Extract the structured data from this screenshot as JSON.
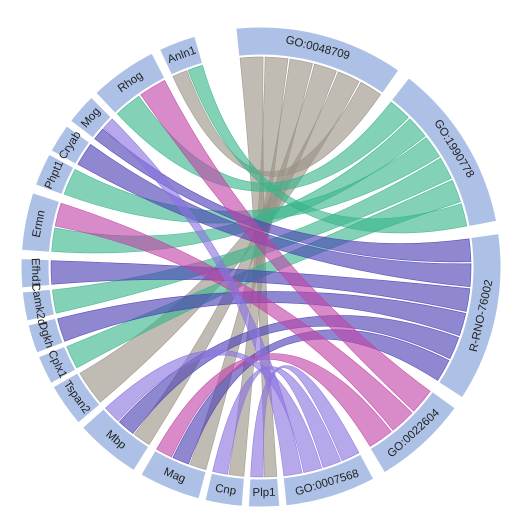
{
  "chart_data": {
    "type": "chord",
    "segment_color": "#adc1e6",
    "segments": [
      {
        "id": "go48709",
        "label": "GO:0048709",
        "a0": -6,
        "a1": 35
      },
      {
        "id": "go1990778",
        "label": "GO:1990778",
        "a0": 38,
        "a1": 79
      },
      {
        "id": "rrno",
        "label": "R-RNO-76002",
        "a0": 82,
        "a1": 123
      },
      {
        "id": "go22604",
        "label": "GO:0022604",
        "a0": 126,
        "a1": 149
      },
      {
        "id": "go7568",
        "label": "GO:0007568",
        "a0": 152,
        "a1": 174
      },
      {
        "id": "plp1",
        "label": "Plp1",
        "a0": 175.5,
        "a1": 183
      },
      {
        "id": "cnp",
        "label": "Cnp",
        "a0": 184.5,
        "a1": 193.5
      },
      {
        "id": "mag",
        "label": "Mag",
        "a0": 195,
        "a1": 210
      },
      {
        "id": "mbp",
        "label": "Mbp",
        "a0": 212,
        "a1": 228
      },
      {
        "id": "tspan2",
        "label": "Tspan2",
        "a0": 229.5,
        "a1": 240
      },
      {
        "id": "cplx1",
        "label": "Cplx1",
        "a0": 241,
        "a1": 248
      },
      {
        "id": "dgkh",
        "label": "Dgkh",
        "a0": 249,
        "a1": 256
      },
      {
        "id": "camk2d",
        "label": "Camk2d",
        "a0": 257,
        "a1": 264
      },
      {
        "id": "efhd1",
        "label": "Efhd1",
        "a0": 265,
        "a1": 272
      },
      {
        "id": "ermn",
        "label": "Ermn",
        "a0": 274,
        "a1": 288
      },
      {
        "id": "phptl",
        "label": "Phpt1",
        "a0": 290,
        "a1": 298
      },
      {
        "id": "cryab",
        "label": "Cryab",
        "a0": 299,
        "a1": 306
      },
      {
        "id": "mog",
        "label": "Mog",
        "a0": 307.5,
        "a1": 315
      },
      {
        "id": "rhog",
        "label": "Rhog",
        "a0": 316.5,
        "a1": 333
      },
      {
        "id": "anln",
        "label": "Anln1",
        "a0": 335,
        "a1": 344
      }
    ],
    "links": [
      {
        "from": "plp1",
        "to": "go48709",
        "color": "#9a9184"
      },
      {
        "from": "cnp",
        "to": "go48709",
        "color": "#9a9184"
      },
      {
        "from": "mag",
        "to": "go48709",
        "color": "#9a9184"
      },
      {
        "from": "mbp",
        "to": "go48709",
        "color": "#9a9184"
      },
      {
        "from": "tspan2",
        "to": "go48709",
        "color": "#9a9184"
      },
      {
        "from": "anln",
        "to": "go48709",
        "color": "#9a9184"
      },
      {
        "from": "rhog",
        "to": "go1990778",
        "color": "#37b48a"
      },
      {
        "from": "ermn",
        "to": "go1990778",
        "color": "#37b48a"
      },
      {
        "from": "phptl",
        "to": "go1990778",
        "color": "#37b48a"
      },
      {
        "from": "camk2d",
        "to": "go1990778",
        "color": "#37b48a"
      },
      {
        "from": "cplx1",
        "to": "go1990778",
        "color": "#37b48a"
      },
      {
        "from": "anln",
        "to": "go1990778",
        "color": "#37b48a"
      },
      {
        "from": "mog",
        "to": "rrno",
        "color": "#4a3fb5"
      },
      {
        "from": "cryab",
        "to": "rrno",
        "color": "#4a3fb5"
      },
      {
        "from": "efhd1",
        "to": "rrno",
        "color": "#4a3fb5"
      },
      {
        "from": "dgkh",
        "to": "rrno",
        "color": "#4a3fb5"
      },
      {
        "from": "mbp",
        "to": "rrno",
        "color": "#4a3fb5"
      },
      {
        "from": "mag",
        "to": "rrno",
        "color": "#4a3fb5"
      },
      {
        "from": "rhog",
        "to": "go22604",
        "color": "#c044a6"
      },
      {
        "from": "ermn",
        "to": "go22604",
        "color": "#c044a6"
      },
      {
        "from": "mag",
        "to": "go22604",
        "color": "#c044a6"
      },
      {
        "from": "plp1",
        "to": "go7568",
        "color": "#8b73e0"
      },
      {
        "from": "cnp",
        "to": "go7568",
        "color": "#8b73e0"
      },
      {
        "from": "mbp",
        "to": "go7568",
        "color": "#8b73e0"
      },
      {
        "from": "mog",
        "to": "go7568",
        "color": "#8b73e0"
      }
    ]
  }
}
